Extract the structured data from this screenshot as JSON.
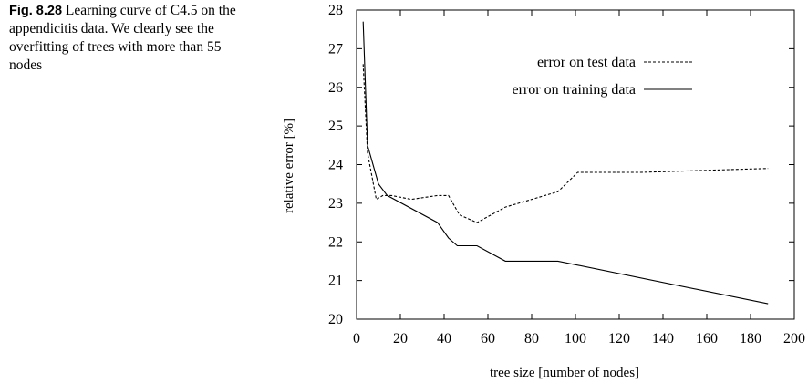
{
  "caption": {
    "label": "Fig. 8.28",
    "text": "Learning curve of C4.5 on the appendicitis data. We clearly see the overfitting of trees with more than 55 nodes"
  },
  "chart_data": {
    "type": "line",
    "xlabel": "tree size [number of nodes]",
    "ylabel": "relative error [%]",
    "xlim": [
      0,
      200
    ],
    "ylim": [
      20,
      28
    ],
    "xticks": [
      0,
      20,
      40,
      60,
      80,
      100,
      120,
      140,
      160,
      180,
      200
    ],
    "yticks": [
      20,
      21,
      22,
      23,
      24,
      25,
      26,
      27,
      28
    ],
    "grid": false,
    "legend_position": "top-right",
    "series": [
      {
        "name": "error on test data",
        "style": "dashed",
        "points": [
          [
            3,
            26.6
          ],
          [
            5,
            24.3
          ],
          [
            7,
            23.7
          ],
          [
            9,
            23.1
          ],
          [
            12,
            23.2
          ],
          [
            16,
            23.2
          ],
          [
            25,
            23.1
          ],
          [
            37,
            23.2
          ],
          [
            42,
            23.2
          ],
          [
            47,
            22.7
          ],
          [
            55,
            22.5
          ],
          [
            68,
            22.9
          ],
          [
            92,
            23.3
          ],
          [
            101,
            23.8
          ],
          [
            130,
            23.8
          ],
          [
            188,
            23.9
          ]
        ]
      },
      {
        "name": "error on training data",
        "style": "solid",
        "points": [
          [
            3,
            27.7
          ],
          [
            5,
            24.5
          ],
          [
            10,
            23.5
          ],
          [
            14,
            23.2
          ],
          [
            37,
            22.5
          ],
          [
            42,
            22.1
          ],
          [
            46,
            21.9
          ],
          [
            55,
            21.9
          ],
          [
            68,
            21.5
          ],
          [
            92,
            21.5
          ],
          [
            188,
            20.4
          ]
        ]
      }
    ]
  }
}
